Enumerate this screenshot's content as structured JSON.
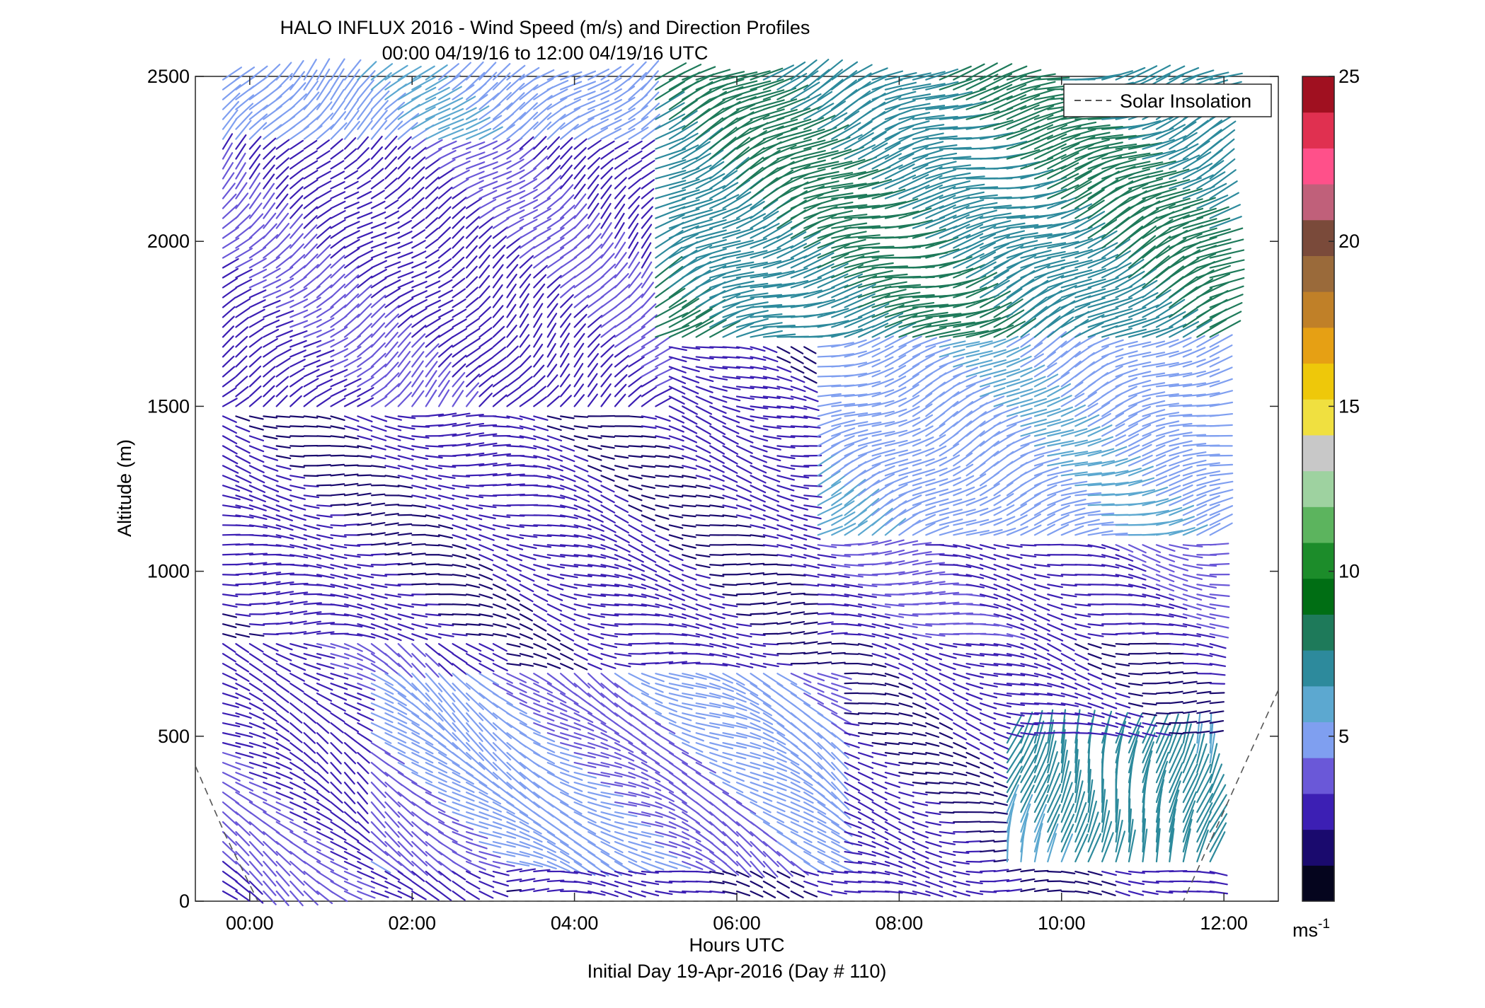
{
  "chart_data": {
    "type": "wind-barb profile (quiver)",
    "title": "HALO INFLUX 2016 - Wind Speed (m/s) and Direction Profiles",
    "subtitle": "00:00 04/19/16 to 12:00 04/19/16  UTC",
    "xlabel": "Hours UTC",
    "xlabel2": "Initial Day 19-Apr-2016 (Day # 110)",
    "ylabel": "Altitude (m)",
    "x_ticks": [
      "00:00",
      "02:00",
      "04:00",
      "06:00",
      "08:00",
      "10:00",
      "12:00"
    ],
    "x_tick_hours": [
      0,
      2,
      4,
      6,
      8,
      10,
      12
    ],
    "xlim_hours": [
      -0.67,
      12.67
    ],
    "y_ticks": [
      0,
      500,
      1000,
      1500,
      2000,
      2500
    ],
    "ylim": [
      0,
      2500
    ],
    "legend": {
      "label": "Solar Insolation",
      "position": "top-right"
    },
    "colorbar": {
      "ticks": [
        5,
        10,
        15,
        20,
        25
      ],
      "range": [
        0,
        25
      ],
      "unit_label": "ms",
      "unit_exponent": "-1",
      "colors": [
        "#05051e",
        "#1a0a6e",
        "#3c1fb4",
        "#6a58d8",
        "#7f9ff0",
        "#5ca8d0",
        "#2d8a9c",
        "#1e7a5a",
        "#006e14",
        "#1c8c2a",
        "#5cb45e",
        "#9ed2a0",
        "#c8c8c8",
        "#f0e040",
        "#eec80a",
        "#e6a014",
        "#c08028",
        "#9a6a3a",
        "#7a4a3a",
        "#c0607a",
        "#ff508a",
        "#e03050",
        "#a01020"
      ]
    },
    "profiles_hours": [
      -0.33,
      -0.17,
      0.0,
      0.17,
      0.33,
      0.5,
      0.67,
      0.83,
      1.0,
      1.17,
      1.33,
      1.5,
      1.67,
      1.83,
      2.0,
      2.17,
      2.33,
      2.5,
      2.67,
      2.83,
      3.0,
      3.17,
      3.33,
      3.5,
      3.67,
      3.83,
      4.0,
      4.17,
      4.33,
      4.5,
      4.67,
      4.83,
      5.0,
      5.17,
      5.33,
      5.5,
      5.67,
      5.83,
      6.0,
      6.17,
      6.33,
      6.5,
      6.67,
      6.83,
      7.0,
      7.17,
      7.33,
      7.5,
      7.67,
      7.83,
      8.0,
      8.17,
      8.33,
      8.5,
      8.67,
      8.83,
      9.0,
      9.17,
      9.33,
      9.5,
      9.67,
      9.83,
      10.0,
      10.17,
      10.33,
      10.5,
      10.67,
      10.83,
      11.0,
      11.17,
      11.33,
      11.5,
      11.67,
      11.83
    ],
    "altitude_step_m": 30,
    "altitude_max_m": 2500,
    "wind_regimes": [
      {
        "hours": [
          -0.4,
          3.0
        ],
        "alt_m": [
          0,
          800
        ],
        "speed_ms": 3.0,
        "direction_deg": 300
      },
      {
        "hours": [
          1.5,
          7.2
        ],
        "alt_m": [
          100,
          700
        ],
        "speed_ms": 4.5,
        "direction_deg": 300
      },
      {
        "hours": [
          -0.4,
          7.2
        ],
        "alt_m": [
          800,
          1500
        ],
        "speed_ms": 2.5,
        "direction_deg": 280
      },
      {
        "hours": [
          -0.4,
          5.0
        ],
        "alt_m": [
          1500,
          2300
        ],
        "speed_ms": 3.0,
        "direction_deg": 230
      },
      {
        "hours": [
          -0.4,
          5.0
        ],
        "alt_m": [
          2300,
          2500
        ],
        "speed_ms": 5.0,
        "direction_deg": 230
      },
      {
        "hours": [
          5.0,
          12.0
        ],
        "alt_m": [
          1700,
          2500
        ],
        "speed_ms": 7.5,
        "direction_deg": 250
      },
      {
        "hours": [
          7.0,
          12.0
        ],
        "alt_m": [
          1100,
          1700
        ],
        "speed_ms": 5.0,
        "direction_deg": 250
      },
      {
        "hours": [
          7.0,
          12.0
        ],
        "alt_m": [
          800,
          1100
        ],
        "speed_ms": 3.0,
        "direction_deg": 275
      },
      {
        "hours": [
          9.3,
          12.0
        ],
        "alt_m": [
          100,
          500
        ],
        "speed_ms": 7.0,
        "direction_deg": 200
      }
    ],
    "solar_insolation": {
      "style": "dashed",
      "color": "#555555",
      "points_hours_alt": [
        [
          -0.67,
          410
        ],
        [
          -0.3,
          200
        ],
        [
          0.1,
          0
        ],
        [
          11.5,
          0
        ],
        [
          12.67,
          640
        ]
      ]
    }
  }
}
